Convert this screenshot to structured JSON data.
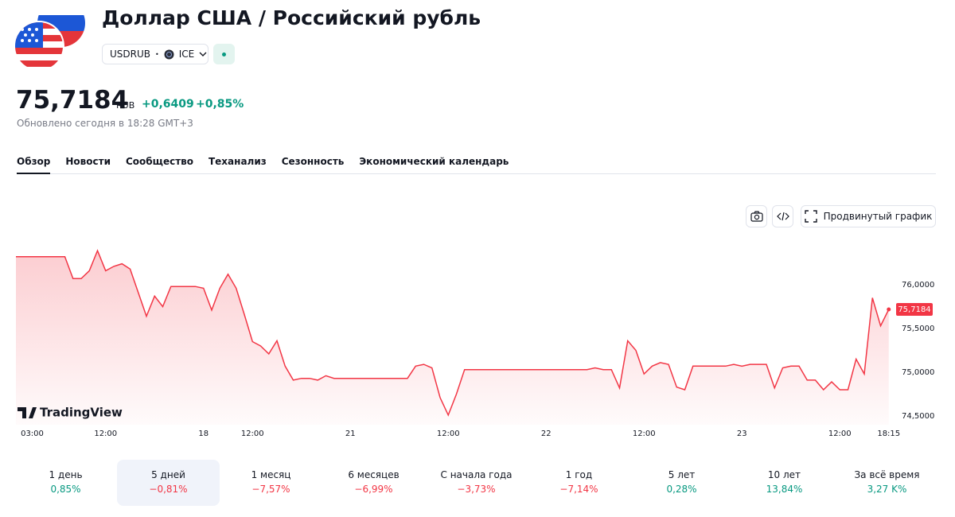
{
  "header": {
    "title": "Доллар США / Российский рубль",
    "symbol": "USDRUB",
    "exchange": "ICE"
  },
  "quote": {
    "price": "75,7184",
    "currency": "RUB",
    "change": "+0,6409",
    "change_pct": "+0,85%",
    "updated": "Обновлено сегодня в 18:28 GMT+3"
  },
  "tabs": [
    "Обзор",
    "Новости",
    "Сообщество",
    "Теханализ",
    "Сезонность",
    "Экономический календарь"
  ],
  "toolbar": {
    "advanced": "Продвинутый график"
  },
  "chart_data": {
    "type": "line",
    "watermark": "TradingView",
    "color": "#f23645",
    "categories": [
      null,
      null,
      "03:00",
      null,
      null,
      null,
      null,
      null,
      null,
      null,
      null,
      "12:00",
      null,
      null,
      null,
      null,
      null,
      null,
      null,
      null,
      null,
      null,
      null,
      "18",
      null,
      null,
      null,
      null,
      null,
      "12:00",
      null,
      null,
      null,
      null,
      null,
      null,
      null,
      null,
      null,
      null,
      null,
      "21",
      null,
      null,
      null,
      null,
      null,
      null,
      null,
      null,
      null,
      null,
      null,
      "12:00",
      null,
      null,
      null,
      null,
      null,
      null,
      null,
      null,
      null,
      null,
      null,
      "22",
      null,
      null,
      null,
      null,
      null,
      null,
      null,
      null,
      null,
      null,
      null,
      "12:00",
      null,
      null,
      null,
      null,
      null,
      null,
      null,
      null,
      null,
      null,
      null,
      "23",
      null,
      null,
      null,
      null,
      null,
      null,
      null,
      null,
      null,
      null,
      null,
      "12:00",
      null,
      null,
      null,
      null,
      null,
      "18:15"
    ],
    "values": [
      76.32,
      76.32,
      76.32,
      76.32,
      76.32,
      76.32,
      76.32,
      76.07,
      76.07,
      76.16,
      76.39,
      76.16,
      76.21,
      76.24,
      76.18,
      75.91,
      75.64,
      75.87,
      75.75,
      75.98,
      75.98,
      75.98,
      75.98,
      75.96,
      75.71,
      75.96,
      76.12,
      75.96,
      75.66,
      75.35,
      75.3,
      75.21,
      75.36,
      75.07,
      74.91,
      74.93,
      74.93,
      74.91,
      74.96,
      74.93,
      74.93,
      74.93,
      74.93,
      74.93,
      74.93,
      74.93,
      74.93,
      74.93,
      74.93,
      75.07,
      75.09,
      75.05,
      74.71,
      74.51,
      74.75,
      75.03,
      75.03,
      75.03,
      75.03,
      75.03,
      75.03,
      75.03,
      75.03,
      75.03,
      75.03,
      75.03,
      75.03,
      75.03,
      75.03,
      75.03,
      75.03,
      75.05,
      75.03,
      75.03,
      74.82,
      75.36,
      75.25,
      74.98,
      75.07,
      75.11,
      75.09,
      74.83,
      74.8,
      75.07,
      75.07,
      75.07,
      75.07,
      75.07,
      75.09,
      75.07,
      75.09,
      75.09,
      75.09,
      74.82,
      75.05,
      75.07,
      75.07,
      74.91,
      74.91,
      74.8,
      74.89,
      74.8,
      74.8,
      75.15,
      74.98,
      75.85,
      75.53,
      75.7184
    ],
    "marker": {
      "value": 75.7184,
      "label": "75,7184"
    },
    "ylim": [
      74.4,
      76.55
    ],
    "yticks": [
      {
        "value": 74.5,
        "label": "74,5000"
      },
      {
        "value": 75,
        "label": "75,0000"
      },
      {
        "value": 75.5,
        "label": "75,5000"
      },
      {
        "value": 76,
        "label": "76,0000"
      }
    ]
  },
  "periods": [
    {
      "label": "1 день",
      "change": "0,85%"
    },
    {
      "label": "5 дней",
      "change": "−0,81%",
      "selected": true
    },
    {
      "label": "1 месяц",
      "change": "−7,57%"
    },
    {
      "label": "6 месяцев",
      "change": "−6,99%"
    },
    {
      "label": "С начала года",
      "change": "−3,73%"
    },
    {
      "label": "1 год",
      "change": "−7,14%"
    },
    {
      "label": "5 лет",
      "change": "0,28%"
    },
    {
      "label": "10 лет",
      "change": "13,84%"
    },
    {
      "label": "За всё время",
      "change": "3,27 K%"
    }
  ]
}
